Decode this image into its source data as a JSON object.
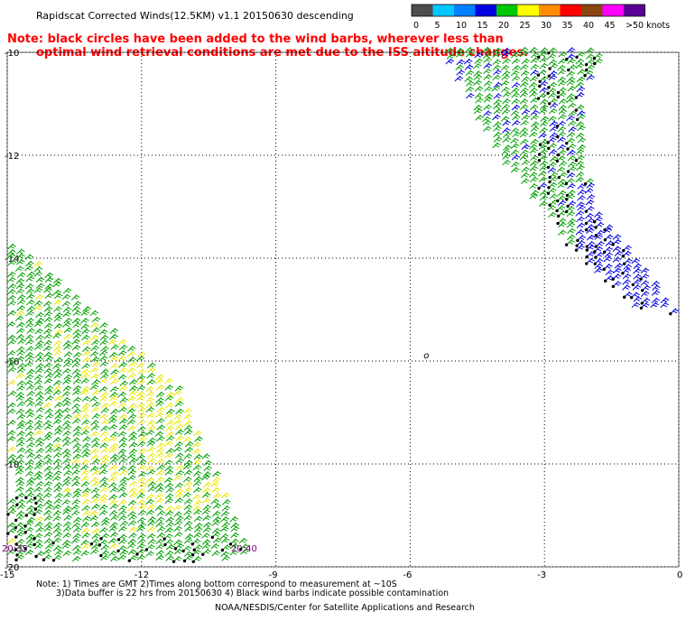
{
  "header": {
    "title": "Rapidscat Corrected Winds(12.5KM) v1.1 20150630 descending",
    "notice_line1": "Note: black circles have been added to the wind barbs, wherever less than",
    "notice_line2": "optimal wind retrieval conditions are met due to the ISS altitude changes."
  },
  "colorbar": {
    "labels": [
      "0",
      "5",
      "10",
      "15",
      "20",
      "25",
      "30",
      "35",
      "40",
      "45",
      ">50 knots"
    ],
    "colors": [
      "#4d4d4d",
      "#00c8ff",
      "#0080ff",
      "#0000e0",
      "#00c800",
      "#ffff00",
      "#ff8c00",
      "#ff0000",
      "#8b4513",
      "#ff00ff",
      "#5a0096"
    ]
  },
  "footer": {
    "note_line1": "Note: 1) Times are GMT 2)Times along bottom correspond to measurement at ~10S",
    "note_line2": "3)Data buffer is 22 hrs from 20150630 4) Black wind barbs indicate possible contamination",
    "credit": "NOAA/NESDIS/Center for Satellite Applications and Research"
  },
  "chart_data": {
    "type": "wind barb map",
    "xlim": [
      -15,
      0
    ],
    "ylim": [
      -20,
      -10
    ],
    "x_ticks": [
      "-15",
      "-12",
      "-9",
      "-6",
      "-3",
      "0"
    ],
    "y_ticks": [
      "-10",
      "-12",
      "-14",
      "-16",
      "-18",
      "-20"
    ],
    "grid": true,
    "time_labels": [
      {
        "text": "20:35",
        "x": -15,
        "y": -19.7,
        "color": "#800080"
      },
      {
        "text": "20:40",
        "x": -10,
        "y": -19.7,
        "color": "#800080"
      }
    ],
    "swaths": [
      {
        "name": "swath-1",
        "polygon": [
          [
            -5.4,
            -10
          ],
          [
            -1.7,
            -10
          ],
          [
            -2.3,
            -11
          ],
          [
            -2.0,
            -13
          ],
          [
            -0.1,
            -15.1
          ],
          [
            -1.0,
            -15.0
          ],
          [
            -2.5,
            -13.8
          ],
          [
            -3.0,
            -13.2
          ],
          [
            -4.0,
            -12.2
          ]
        ],
        "speeds_knots": [
          15,
          20
        ]
      },
      {
        "name": "swath-2",
        "polygon": [
          [
            -15,
            -13.7
          ],
          [
            -11.2,
            -16.6
          ],
          [
            -9.6,
            -19.9
          ],
          [
            -15,
            -19.9
          ]
        ],
        "speeds_knots": [
          15,
          20,
          25
        ]
      }
    ],
    "marker": {
      "text": "o",
      "x": -5.7,
      "y": -15.95
    }
  }
}
